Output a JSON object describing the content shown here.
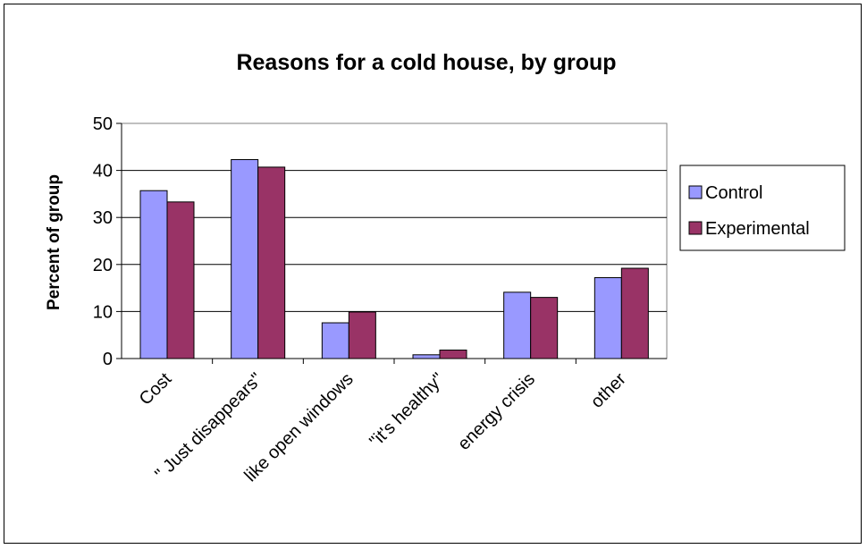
{
  "chart_data": {
    "type": "bar",
    "title": "Reasons for a cold house, by group",
    "xlabel": "",
    "ylabel": "Percent of group",
    "ylim": [
      0,
      50
    ],
    "yticks": [
      "0",
      "10",
      "20",
      "30",
      "40",
      "50"
    ],
    "grid": true,
    "legend": "right",
    "categories": [
      "Cost",
      "\" Just disappears\"",
      "like open windows",
      "\"it's healthy\"",
      "energy crisis",
      "other"
    ],
    "series": [
      {
        "name": "Control",
        "color": "#9999ff",
        "values": [
          35.7,
          42.3,
          7.6,
          0.8,
          14.1,
          17.2
        ]
      },
      {
        "name": "Experimental",
        "color": "#993366",
        "values": [
          33.3,
          40.7,
          9.9,
          1.8,
          13.0,
          19.2
        ]
      }
    ]
  }
}
